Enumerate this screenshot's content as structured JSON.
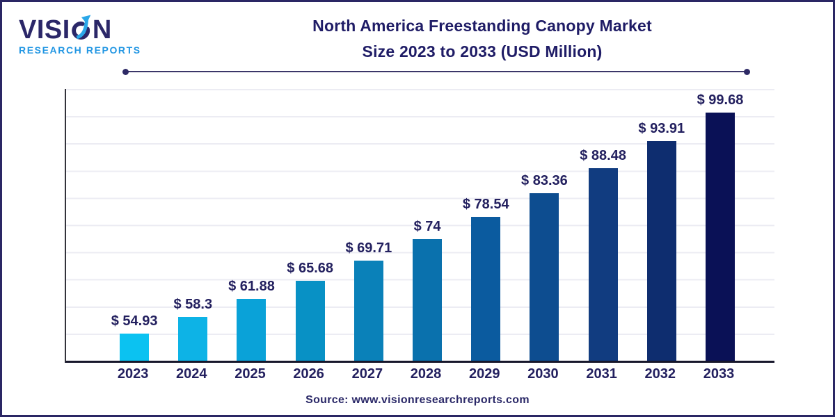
{
  "logo": {
    "word_pre": "VISI",
    "word_post": "N",
    "full_word": "VISION",
    "subtitle": "RESEARCH REPORTS"
  },
  "header": {
    "title_line1": "North America Freestanding Canopy Market",
    "title_line2": "Size 2023 to 2033 (USD Million)"
  },
  "footer": {
    "source": "Source: www.visionresearchreports.com"
  },
  "colors": {
    "ink_navy": "#1f1c66",
    "logo_navy": "#2b2768",
    "logo_blue": "#2196e3",
    "divider": "#3b3669",
    "axis": "#17172b",
    "grid": "#ececf3",
    "canvas_border": "#2a2664"
  },
  "chart_data": {
    "type": "bar",
    "title": "North America Freestanding Canopy Market Size 2023 to 2033 (USD Million)",
    "unit": "USD Million",
    "categories": [
      "2023",
      "2024",
      "2025",
      "2026",
      "2027",
      "2028",
      "2029",
      "2030",
      "2031",
      "2032",
      "2033"
    ],
    "values": [
      54.93,
      58.3,
      61.88,
      65.68,
      69.71,
      74,
      78.54,
      83.36,
      88.48,
      93.91,
      99.68
    ],
    "value_labels": [
      "$ 54.93",
      "$ 58.3",
      "$ 61.88",
      "$ 65.68",
      "$ 69.71",
      "$ 74",
      "$ 78.54",
      "$ 83.36",
      "$ 88.48",
      "$ 93.91",
      "$ 99.68"
    ],
    "bar_colors": [
      "#0bc2f1",
      "#0db3e6",
      "#0aa2d8",
      "#0891c5",
      "#0a81b9",
      "#0a71ad",
      "#0b5b9f",
      "#0d4d90",
      "#113c80",
      "#0e2d6f",
      "#0a1156"
    ],
    "ylim": [
      49.4,
      104.5
    ],
    "xlabel": "",
    "ylabel": "",
    "grid": true,
    "legend": false
  }
}
